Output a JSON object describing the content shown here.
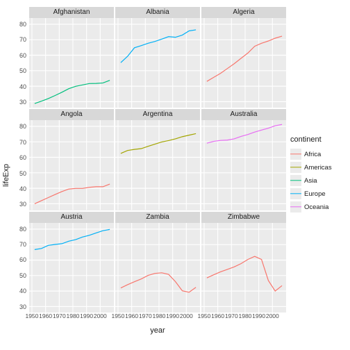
{
  "xlabel": "year",
  "ylabel": "lifeExp",
  "legend_title": "continent",
  "background_color": "#ebebeb",
  "grid_major_color": "#ffffff",
  "grid_minor_color": "#f5f5f5",
  "strip_bg": "#d8d8d8",
  "line_width": 1.2,
  "xlim": [
    1948,
    2010
  ],
  "ylim": [
    26,
    84
  ],
  "xticks": [
    1950,
    1960,
    1970,
    1980,
    1990,
    2000
  ],
  "yticks": [
    30,
    40,
    50,
    60,
    70,
    80
  ],
  "continents": [
    {
      "name": "Africa",
      "color": "#f8766d"
    },
    {
      "name": "Americas",
      "color": "#a3a500"
    },
    {
      "name": "Asia",
      "color": "#00bf7d"
    },
    {
      "name": "Europe",
      "color": "#00b0f6"
    },
    {
      "name": "Oceania",
      "color": "#e76bf3"
    }
  ],
  "panels": [
    {
      "title": "Afghanistan",
      "continent": "Asia",
      "x": [
        1952,
        1957,
        1962,
        1967,
        1972,
        1977,
        1982,
        1987,
        1992,
        1997,
        2002,
        2007
      ],
      "y": [
        28.8,
        30.3,
        32.0,
        34.0,
        36.1,
        38.4,
        39.9,
        40.8,
        41.7,
        41.8,
        42.1,
        43.8
      ]
    },
    {
      "title": "Albania",
      "continent": "Europe",
      "x": [
        1952,
        1957,
        1962,
        1967,
        1972,
        1977,
        1982,
        1987,
        1992,
        1997,
        2002,
        2007
      ],
      "y": [
        55.2,
        59.3,
        64.8,
        66.2,
        67.7,
        68.9,
        70.4,
        72.0,
        71.6,
        73.0,
        75.7,
        76.4
      ]
    },
    {
      "title": "Algeria",
      "continent": "Africa",
      "x": [
        1952,
        1957,
        1962,
        1967,
        1972,
        1977,
        1982,
        1987,
        1992,
        1997,
        2002,
        2007
      ],
      "y": [
        43.1,
        45.7,
        48.3,
        51.4,
        54.5,
        58.0,
        61.4,
        65.8,
        67.7,
        69.2,
        71.0,
        72.3
      ]
    },
    {
      "title": "Angola",
      "continent": "Africa",
      "x": [
        1952,
        1957,
        1962,
        1967,
        1972,
        1977,
        1982,
        1987,
        1992,
        1997,
        2002,
        2007
      ],
      "y": [
        30.0,
        32.0,
        34.0,
        36.0,
        37.9,
        39.5,
        39.9,
        39.9,
        40.6,
        41.0,
        41.0,
        42.7
      ]
    },
    {
      "title": "Argentina",
      "continent": "Americas",
      "x": [
        1952,
        1957,
        1962,
        1967,
        1972,
        1977,
        1982,
        1987,
        1992,
        1997,
        2002,
        2007
      ],
      "y": [
        62.5,
        64.4,
        65.1,
        65.6,
        67.1,
        68.5,
        69.9,
        70.8,
        71.9,
        73.3,
        74.3,
        75.3
      ]
    },
    {
      "title": "Australia",
      "continent": "Oceania",
      "x": [
        1952,
        1957,
        1962,
        1967,
        1972,
        1977,
        1982,
        1987,
        1992,
        1997,
        2002,
        2007
      ],
      "y": [
        69.1,
        70.3,
        70.9,
        71.1,
        71.9,
        73.5,
        74.7,
        76.3,
        77.6,
        78.8,
        80.4,
        81.2
      ]
    },
    {
      "title": "Austria",
      "continent": "Europe",
      "x": [
        1952,
        1957,
        1962,
        1967,
        1972,
        1977,
        1982,
        1987,
        1992,
        1997,
        2002,
        2007
      ],
      "y": [
        66.8,
        67.5,
        69.5,
        70.1,
        70.6,
        72.2,
        73.2,
        74.9,
        76.0,
        77.5,
        79.0,
        79.8
      ]
    },
    {
      "title": "Zambia",
      "continent": "Africa",
      "x": [
        1952,
        1957,
        1962,
        1967,
        1972,
        1977,
        1982,
        1987,
        1992,
        1997,
        2002,
        2007
      ],
      "y": [
        42.0,
        44.1,
        46.0,
        47.8,
        50.1,
        51.4,
        51.8,
        50.8,
        46.1,
        40.2,
        39.2,
        42.4
      ]
    },
    {
      "title": "Zimbabwe",
      "continent": "Africa",
      "x": [
        1952,
        1957,
        1962,
        1967,
        1972,
        1977,
        1982,
        1987,
        1992,
        1997,
        2002,
        2007
      ],
      "y": [
        48.5,
        50.5,
        52.4,
        54.0,
        55.6,
        57.7,
        60.4,
        62.4,
        60.4,
        46.8,
        40.0,
        43.5
      ]
    }
  ]
}
